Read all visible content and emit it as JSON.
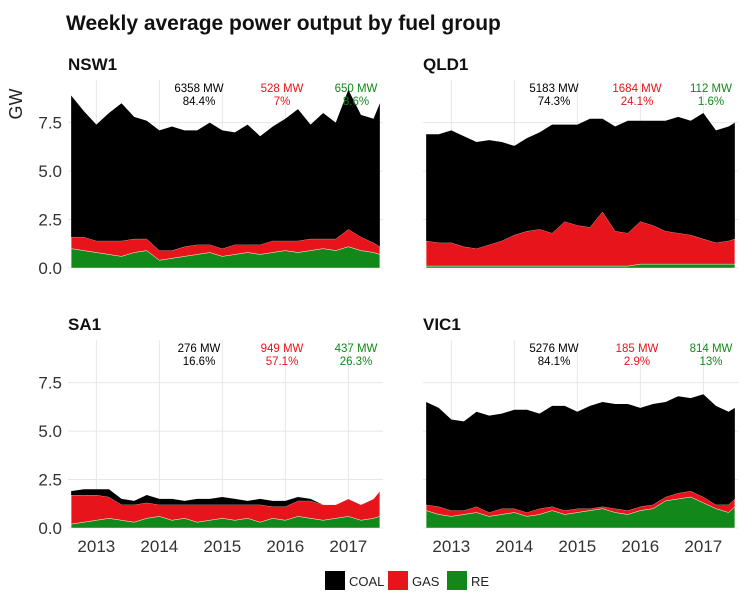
{
  "chart_data": {
    "type": "area",
    "title": "Weekly average power output by fuel group",
    "ylabel": "GW",
    "xlim": [
      2012.55,
      2017.55
    ],
    "ylim": [
      0,
      9.7
    ],
    "x_ticks": [
      2013,
      2014,
      2015,
      2016,
      2017
    ],
    "x_tick_labels": [
      "2013",
      "2014",
      "2015",
      "2016",
      "2017"
    ],
    "y_ticks": [
      0,
      2.5,
      5,
      7.5
    ],
    "y_tick_labels": [
      "0.0",
      "2.5",
      "5.0",
      "7.5"
    ],
    "stacking": "stacked",
    "legend": {
      "position": "bottom",
      "entries": [
        "COAL",
        "GAS",
        "RE"
      ]
    },
    "colors": {
      "COAL": "#000000",
      "GAS": "#e8141c",
      "RE": "#13881a"
    },
    "x": [
      2012.6,
      2012.8,
      2013.0,
      2013.2,
      2013.4,
      2013.6,
      2013.8,
      2014.0,
      2014.2,
      2014.4,
      2014.6,
      2014.8,
      2015.0,
      2015.2,
      2015.4,
      2015.6,
      2015.8,
      2016.0,
      2016.2,
      2016.4,
      2016.6,
      2016.8,
      2017.0,
      2017.2,
      2017.4,
      2017.5
    ],
    "panels": [
      {
        "region": "NSW1",
        "annotations": [
          {
            "series": "COAL",
            "mw": "6358 MW",
            "pct": "84.4%"
          },
          {
            "series": "GAS",
            "mw": "528 MW",
            "pct": "7%"
          },
          {
            "series": "RE",
            "mw": "650 MW",
            "pct": "8.6%"
          }
        ],
        "series": [
          {
            "name": "RE",
            "values": [
              1.0,
              0.9,
              0.8,
              0.7,
              0.6,
              0.8,
              0.9,
              0.4,
              0.5,
              0.6,
              0.7,
              0.8,
              0.6,
              0.7,
              0.8,
              0.7,
              0.8,
              0.9,
              0.8,
              0.9,
              1.0,
              0.9,
              1.1,
              0.9,
              0.8,
              0.7
            ]
          },
          {
            "name": "GAS",
            "values": [
              0.6,
              0.7,
              0.6,
              0.7,
              0.8,
              0.7,
              0.6,
              0.5,
              0.4,
              0.5,
              0.5,
              0.4,
              0.4,
              0.5,
              0.4,
              0.5,
              0.6,
              0.5,
              0.6,
              0.6,
              0.5,
              0.6,
              0.9,
              0.7,
              0.5,
              0.4
            ]
          },
          {
            "name": "COAL",
            "values": [
              7.3,
              6.5,
              6.0,
              6.6,
              7.1,
              6.3,
              6.1,
              6.2,
              6.4,
              6.0,
              5.9,
              6.3,
              6.1,
              5.8,
              6.2,
              5.6,
              5.9,
              6.3,
              6.8,
              5.9,
              6.5,
              6.0,
              7.2,
              6.3,
              6.4,
              7.4
            ]
          }
        ]
      },
      {
        "region": "QLD1",
        "annotations": [
          {
            "series": "COAL",
            "mw": "5183 MW",
            "pct": "74.3%"
          },
          {
            "series": "GAS",
            "mw": "1684 MW",
            "pct": "24.1%"
          },
          {
            "series": "RE",
            "mw": "112 MW",
            "pct": "1.6%"
          }
        ],
        "series": [
          {
            "name": "RE",
            "values": [
              0.1,
              0.1,
              0.1,
              0.1,
              0.1,
              0.1,
              0.1,
              0.1,
              0.1,
              0.1,
              0.1,
              0.1,
              0.1,
              0.1,
              0.1,
              0.1,
              0.1,
              0.2,
              0.2,
              0.2,
              0.2,
              0.2,
              0.2,
              0.2,
              0.2,
              0.2
            ]
          },
          {
            "name": "GAS",
            "values": [
              1.3,
              1.2,
              1.2,
              1.0,
              0.9,
              1.1,
              1.3,
              1.6,
              1.8,
              1.9,
              1.7,
              2.3,
              2.1,
              2.0,
              2.8,
              1.8,
              1.7,
              2.2,
              2.0,
              1.7,
              1.6,
              1.5,
              1.3,
              1.1,
              1.2,
              1.3
            ]
          },
          {
            "name": "COAL",
            "values": [
              5.5,
              5.6,
              5.8,
              5.7,
              5.5,
              5.4,
              5.1,
              4.6,
              4.8,
              5.0,
              5.6,
              5.0,
              5.2,
              5.6,
              4.8,
              5.4,
              5.8,
              5.2,
              5.4,
              5.7,
              6.0,
              5.9,
              6.5,
              5.8,
              5.9,
              6.0
            ]
          }
        ]
      },
      {
        "region": "SA1",
        "annotations": [
          {
            "series": "COAL",
            "mw": "276 MW",
            "pct": "16.6%"
          },
          {
            "series": "GAS",
            "mw": "949 MW",
            "pct": "57.1%"
          },
          {
            "series": "RE",
            "mw": "437 MW",
            "pct": "26.3%"
          }
        ],
        "series": [
          {
            "name": "RE",
            "values": [
              0.2,
              0.3,
              0.4,
              0.5,
              0.4,
              0.3,
              0.5,
              0.6,
              0.4,
              0.5,
              0.3,
              0.4,
              0.5,
              0.4,
              0.5,
              0.3,
              0.5,
              0.4,
              0.6,
              0.5,
              0.4,
              0.5,
              0.6,
              0.4,
              0.5,
              0.6
            ]
          },
          {
            "name": "GAS",
            "values": [
              1.5,
              1.4,
              1.3,
              1.1,
              0.8,
              0.9,
              0.8,
              0.6,
              0.8,
              0.7,
              0.9,
              0.8,
              0.7,
              0.8,
              0.7,
              0.9,
              0.6,
              0.7,
              0.8,
              0.9,
              0.8,
              0.7,
              0.9,
              0.8,
              1.0,
              1.3
            ]
          },
          {
            "name": "COAL",
            "values": [
              0.2,
              0.3,
              0.3,
              0.4,
              0.3,
              0.2,
              0.4,
              0.3,
              0.3,
              0.2,
              0.3,
              0.3,
              0.4,
              0.3,
              0.2,
              0.3,
              0.3,
              0.3,
              0.2,
              0.1,
              0.0,
              0.0,
              0.0,
              0.0,
              0.0,
              0.0
            ]
          }
        ]
      },
      {
        "region": "VIC1",
        "annotations": [
          {
            "series": "COAL",
            "mw": "5276 MW",
            "pct": "84.1%"
          },
          {
            "series": "GAS",
            "mw": "185 MW",
            "pct": "2.9%"
          },
          {
            "series": "RE",
            "mw": "814 MW",
            "pct": "13%"
          }
        ],
        "series": [
          {
            "name": "RE",
            "values": [
              0.9,
              0.7,
              0.6,
              0.7,
              0.8,
              0.6,
              0.7,
              0.8,
              0.6,
              0.7,
              0.9,
              0.7,
              0.8,
              0.9,
              1.0,
              0.8,
              0.7,
              0.9,
              1.0,
              1.4,
              1.5,
              1.6,
              1.3,
              1.0,
              0.8,
              1.1
            ]
          },
          {
            "name": "GAS",
            "values": [
              0.3,
              0.4,
              0.3,
              0.2,
              0.3,
              0.2,
              0.3,
              0.2,
              0.2,
              0.3,
              0.2,
              0.2,
              0.2,
              0.1,
              0.1,
              0.2,
              0.2,
              0.2,
              0.2,
              0.2,
              0.3,
              0.3,
              0.3,
              0.2,
              0.4,
              0.4
            ]
          },
          {
            "name": "COAL",
            "values": [
              5.3,
              5.1,
              4.7,
              4.6,
              4.9,
              5.0,
              4.9,
              5.1,
              5.3,
              4.9,
              5.2,
              5.4,
              5.0,
              5.3,
              5.4,
              5.4,
              5.5,
              5.1,
              5.2,
              4.9,
              5.0,
              4.8,
              5.3,
              5.1,
              4.8,
              4.7
            ]
          }
        ]
      }
    ]
  }
}
